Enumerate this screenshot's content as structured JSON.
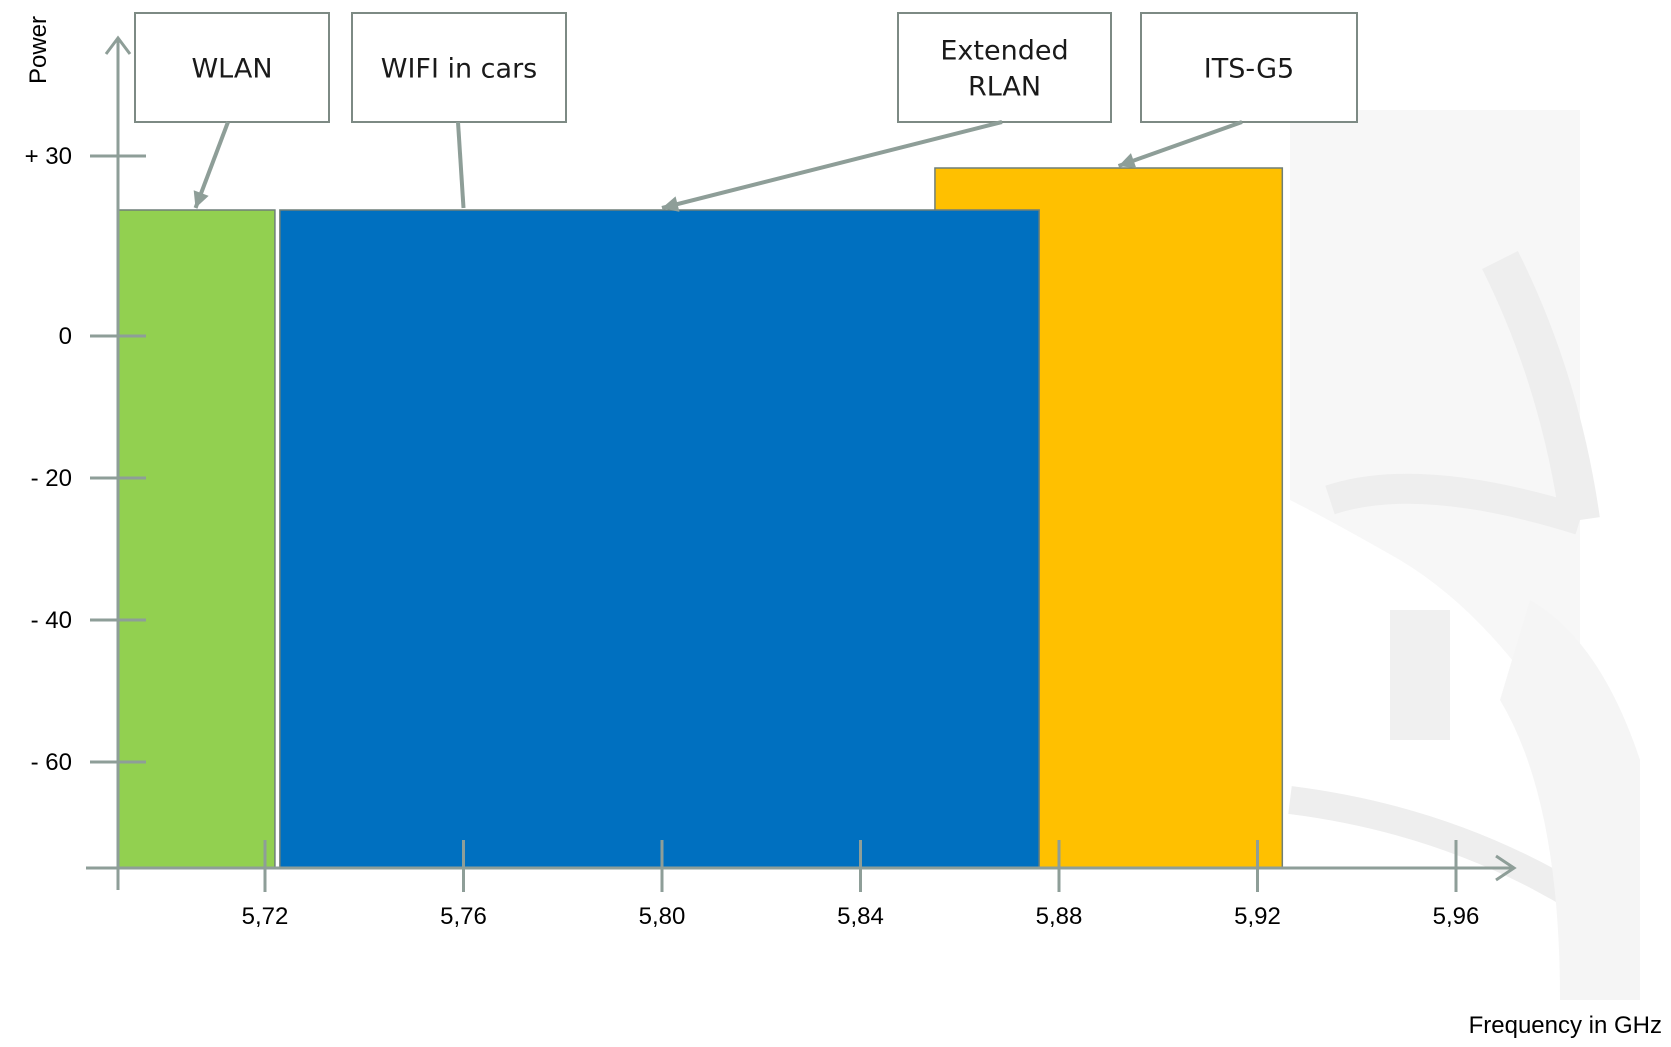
{
  "colors": {
    "axis": "#8e9e98",
    "watermark": "#eeeeee",
    "callout_border": "#7d8a84"
  },
  "y_axis": {
    "title": "Power",
    "ticks": [
      {
        "label": "+ 30",
        "value": 30
      },
      {
        "label": "0",
        "value": 0
      },
      {
        "label": "- 20",
        "value": -20
      },
      {
        "label": "- 40",
        "value": -40
      },
      {
        "label": "-  60",
        "value": -60
      }
    ]
  },
  "x_axis": {
    "title": "Frequency in GHz",
    "ticks": [
      {
        "label": "5,72",
        "value": 5.72
      },
      {
        "label": "5,76",
        "value": 5.76
      },
      {
        "label": "5,80",
        "value": 5.8
      },
      {
        "label": "5,84",
        "value": 5.84
      },
      {
        "label": "5,88",
        "value": 5.88
      },
      {
        "label": "5,92",
        "value": 5.92
      },
      {
        "label": "5,96",
        "value": 5.96
      }
    ]
  },
  "bands": [
    {
      "id": "wlan",
      "start_ghz": 5.69,
      "end_ghz": 5.722,
      "top_power": 21,
      "color": "#92d050"
    },
    {
      "id": "its-g5",
      "start_ghz": 5.855,
      "end_ghz": 5.925,
      "top_power": 28,
      "color": "#ffc000"
    },
    {
      "id": "wifi-in-cars",
      "start_ghz": 5.723,
      "end_ghz": 5.876,
      "top_power": 21,
      "color": "#0070c0"
    }
  ],
  "callouts": [
    {
      "id": "wlan",
      "lines": [
        "WLAN"
      ],
      "target_ghz": 5.706,
      "target_power": 21
    },
    {
      "id": "wifi-in-cars",
      "lines": [
        "WIFI in cars"
      ],
      "target_ghz": 5.76,
      "target_power": 21
    },
    {
      "id": "extended-rlan",
      "lines": [
        "Extended",
        "RLAN"
      ],
      "target_ghz": 5.8,
      "target_power": 21
    },
    {
      "id": "its-g5",
      "lines": [
        "ITS-G5"
      ],
      "target_ghz": 5.892,
      "target_power": 28
    }
  ]
}
